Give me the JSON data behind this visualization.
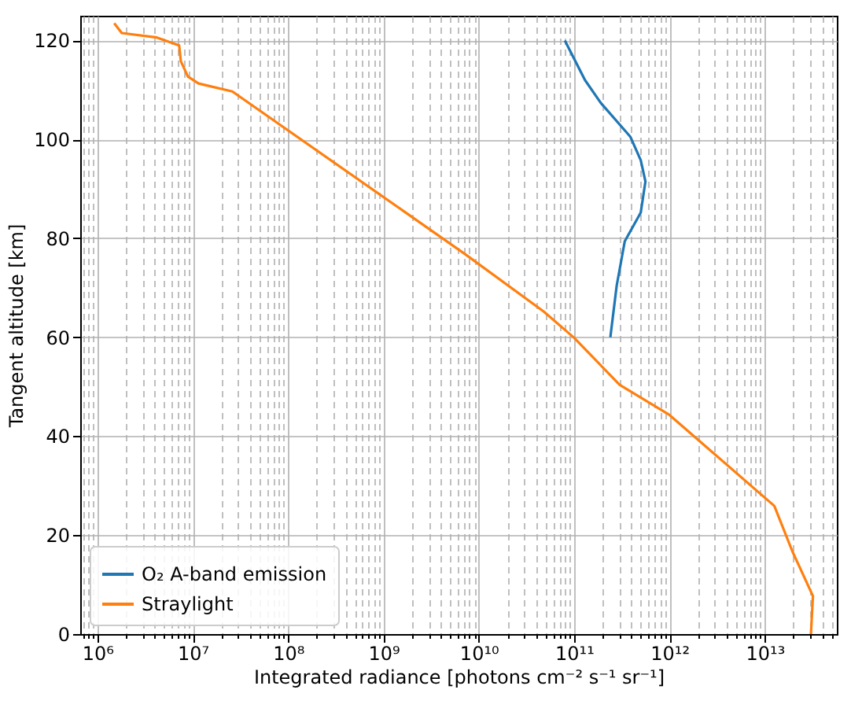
{
  "chart_data": {
    "type": "line",
    "xlabel": "Integrated radiance [photons cm⁻² s⁻¹ sr⁻¹]",
    "ylabel": "Tangent altitude [km]",
    "log": "x",
    "grid": true,
    "legend": "bottom left",
    "line_style": "solid",
    "xlim": [
      660000,
      57000000000000
    ],
    "ylim": [
      0,
      125
    ],
    "xticks": [
      {
        "value": 1000000,
        "label": "10⁶"
      },
      {
        "value": 10000000,
        "label": "10⁷"
      },
      {
        "value": 100000000,
        "label": "10⁸"
      },
      {
        "value": 1000000000,
        "label": "10⁹"
      },
      {
        "value": 10000000000,
        "label": "10¹⁰"
      },
      {
        "value": 100000000000,
        "label": "10¹¹"
      },
      {
        "value": 1000000000000,
        "label": "10¹²"
      },
      {
        "value": 10000000000000,
        "label": "10¹³"
      }
    ],
    "yticks": [
      0,
      20,
      40,
      60,
      80,
      100,
      120
    ],
    "series": [
      {
        "name": "O₂ A-band emission",
        "color": "#1f77b4",
        "x": [
          80000000000,
          130000000000,
          190000000000,
          390000000000,
          500000000000,
          560000000000,
          500000000000,
          340000000000,
          280000000000,
          240000000000
        ],
        "values": [
          120,
          112,
          107.4,
          100.5,
          95.8,
          91.5,
          85.2,
          79.4,
          70.5,
          60
        ]
      },
      {
        "name": "Straylight",
        "color": "#ff7f0e",
        "x": [
          1500000,
          1800000,
          4200000,
          7200000,
          7500000,
          8900000,
          11500000,
          26000000,
          7200000000,
          48000000000,
          100000000000,
          300000000000,
          1000000000000,
          12600000000000,
          19500000000000,
          32000000000000,
          30500000000000
        ],
        "values": [
          123.5,
          121.5,
          120.6,
          119,
          115.8,
          112.7,
          111.3,
          109.7,
          76.8,
          65.2,
          59.9,
          50.4,
          44.3,
          25.9,
          16.7,
          7.7,
          0
        ]
      }
    ]
  }
}
